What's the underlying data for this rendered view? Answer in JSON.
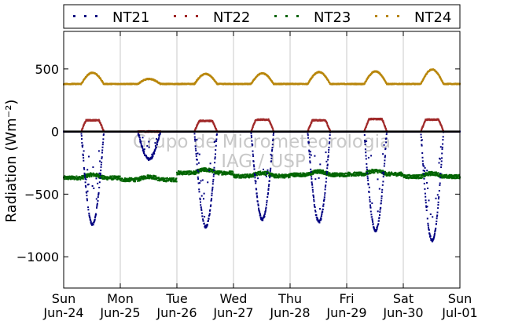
{
  "chart_data": {
    "type": "scatter",
    "ylabel": "Radiation (Wm⁻²)",
    "xlabel": "",
    "title": "",
    "x_range_days": [
      "2012-06-24",
      "2012-07-01"
    ],
    "xlim": [
      "Jun-24",
      "Jul-01"
    ],
    "ylim": [
      -1250,
      800
    ],
    "yticks": [
      500,
      0,
      -500,
      -1000
    ],
    "ytick_labels": [
      "500",
      "0",
      "−500",
      "−1000"
    ],
    "xticks": [
      {
        "day": "Sun",
        "date": "Jun-24"
      },
      {
        "day": "Mon",
        "date": "Jun-25"
      },
      {
        "day": "Tue",
        "date": "Jun-26"
      },
      {
        "day": "Wed",
        "date": "Jun-27"
      },
      {
        "day": "Thu",
        "date": "Jun-28"
      },
      {
        "day": "Fri",
        "date": "Jun-29"
      },
      {
        "day": "Sat",
        "date": "Jun-30"
      },
      {
        "day": "Sun",
        "date": "Jul-01"
      }
    ],
    "grid": "vertical",
    "zero_line": true,
    "legend_position": "top",
    "watermark": [
      "Grupo de Micrometeorologia",
      "IAG / USP"
    ],
    "series": [
      {
        "name": "NT21",
        "color": "#000080",
        "night_value": 0,
        "daily_min": [
          -740,
          -220,
          -760,
          -700,
          -720,
          -790,
          -870
        ],
        "description_values": "daily negative trough reaching minimum near local noon"
      },
      {
        "name": "NT22",
        "color": "#a02828",
        "night_value": 0,
        "daily_max": [
          90,
          0,
          85,
          95,
          90,
          100,
          95
        ]
      },
      {
        "name": "NT23",
        "color": "#006400",
        "baseline": -375,
        "daily_values": [
          {
            "day": "Jun-24",
            "mean": -370
          },
          {
            "day": "Jun-25",
            "mean": -385
          },
          {
            "day": "Jun-26",
            "mean": -330
          },
          {
            "day": "Jun-27",
            "mean": -355
          },
          {
            "day": "Jun-28",
            "mean": -345
          },
          {
            "day": "Jun-29",
            "mean": -340
          },
          {
            "day": "Jun-30",
            "mean": -360
          }
        ]
      },
      {
        "name": "NT24",
        "color": "#b8860b",
        "baseline": 380,
        "daily_max": [
          470,
          420,
          460,
          465,
          475,
          480,
          495
        ]
      }
    ]
  }
}
